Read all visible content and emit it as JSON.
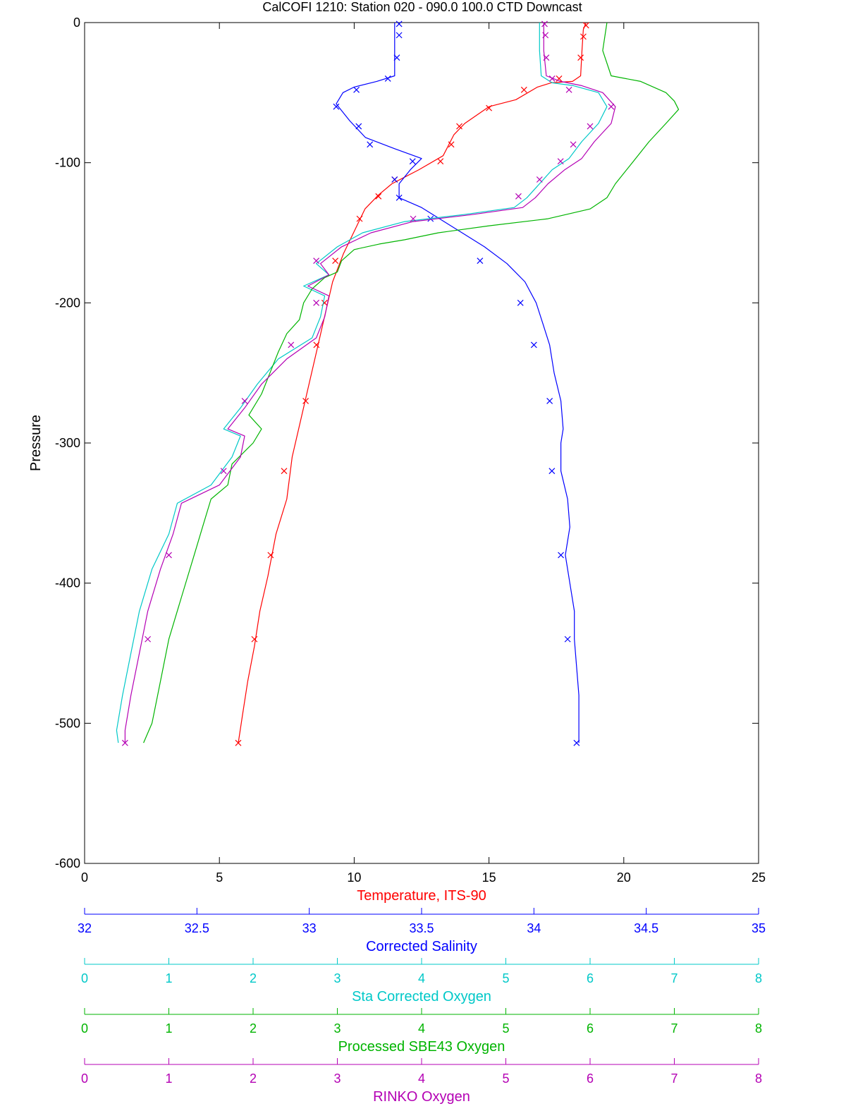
{
  "chart_data": {
    "type": "line",
    "title": "CalCOFI 1210: Station 020 - 090.0 100.0 CTD Downcast",
    "ylabel": "Pressure",
    "ylim": [
      -600,
      0
    ],
    "yticks": [
      "0",
      "-100",
      "-200",
      "-300",
      "-400",
      "-500",
      "-600"
    ],
    "grid": false,
    "axes": [
      {
        "key": "temp",
        "label": "Temperature, ITS-90",
        "color": "#ff0000",
        "range": [
          0,
          25
        ],
        "ticks": [
          "0",
          "5",
          "10",
          "15",
          "20",
          "25"
        ]
      },
      {
        "key": "sal",
        "label": "Corrected Salinity",
        "color": "#0000ff",
        "range": [
          32,
          35
        ],
        "ticks": [
          "32",
          "32.5",
          "33",
          "33.5",
          "34",
          "34.5",
          "35"
        ]
      },
      {
        "key": "staox",
        "label": "Sta Corrected Oxygen",
        "color": "#00c8c8",
        "range": [
          0,
          8
        ],
        "ticks": [
          "0",
          "1",
          "2",
          "3",
          "4",
          "5",
          "6",
          "7",
          "8"
        ]
      },
      {
        "key": "sbe43",
        "label": "Processed SBE43 Oxygen",
        "color": "#00b400",
        "range": [
          0,
          8
        ],
        "ticks": [
          "0",
          "1",
          "2",
          "3",
          "4",
          "5",
          "6",
          "7",
          "8"
        ]
      },
      {
        "key": "rinko",
        "label": "RINKO Oxygen",
        "color": "#b400b4",
        "range": [
          0,
          8
        ],
        "ticks": [
          "0",
          "1",
          "2",
          "3",
          "4",
          "5",
          "6",
          "7",
          "8"
        ]
      }
    ],
    "series": [
      {
        "key": "temp",
        "color": "#ff0000",
        "line": [
          [
            18.6,
            0
          ],
          [
            18.5,
            -5
          ],
          [
            18.45,
            -20
          ],
          [
            18.4,
            -38
          ],
          [
            18.1,
            -42
          ],
          [
            17.3,
            -43
          ],
          [
            16.8,
            -46
          ],
          [
            16.0,
            -55
          ],
          [
            15.0,
            -60
          ],
          [
            14.1,
            -72
          ],
          [
            13.7,
            -80
          ],
          [
            13.3,
            -95
          ],
          [
            12.4,
            -105
          ],
          [
            11.4,
            -115
          ],
          [
            10.9,
            -123
          ],
          [
            10.4,
            -133
          ],
          [
            10.1,
            -145
          ],
          [
            9.6,
            -165
          ],
          [
            9.2,
            -185
          ],
          [
            8.9,
            -210
          ],
          [
            8.6,
            -235
          ],
          [
            8.3,
            -260
          ],
          [
            8.0,
            -285
          ],
          [
            7.7,
            -310
          ],
          [
            7.5,
            -340
          ],
          [
            7.1,
            -365
          ],
          [
            6.8,
            -395
          ],
          [
            6.5,
            -420
          ],
          [
            6.3,
            -445
          ],
          [
            6.05,
            -470
          ],
          [
            5.85,
            -495
          ],
          [
            5.7,
            -514
          ]
        ],
        "markers": [
          [
            18.6,
            -2
          ],
          [
            18.5,
            -10
          ],
          [
            18.4,
            -25
          ],
          [
            17.6,
            -40
          ],
          [
            16.3,
            -48
          ],
          [
            15.0,
            -61
          ],
          [
            13.9,
            -74
          ],
          [
            13.6,
            -87
          ],
          [
            13.2,
            -99
          ],
          [
            11.5,
            -112
          ],
          [
            10.9,
            -124
          ],
          [
            10.2,
            -140
          ],
          [
            9.3,
            -170
          ],
          [
            8.9,
            -200
          ],
          [
            8.6,
            -230
          ],
          [
            8.2,
            -270
          ],
          [
            7.4,
            -320
          ],
          [
            6.9,
            -380
          ],
          [
            6.3,
            -440
          ],
          [
            5.7,
            -514
          ]
        ]
      },
      {
        "key": "sal",
        "color": "#0000ff",
        "line": [
          [
            33.38,
            0
          ],
          [
            33.38,
            -20
          ],
          [
            33.38,
            -38
          ],
          [
            33.3,
            -42
          ],
          [
            33.2,
            -46
          ],
          [
            33.15,
            -50
          ],
          [
            33.12,
            -58
          ],
          [
            33.18,
            -70
          ],
          [
            33.25,
            -82
          ],
          [
            33.38,
            -90
          ],
          [
            33.5,
            -97
          ],
          [
            33.45,
            -105
          ],
          [
            33.4,
            -115
          ],
          [
            33.4,
            -125
          ],
          [
            33.5,
            -132
          ],
          [
            33.58,
            -140
          ],
          [
            33.68,
            -150
          ],
          [
            33.78,
            -160
          ],
          [
            33.88,
            -172
          ],
          [
            33.96,
            -185
          ],
          [
            34.01,
            -200
          ],
          [
            34.04,
            -215
          ],
          [
            34.07,
            -230
          ],
          [
            34.09,
            -250
          ],
          [
            34.12,
            -270
          ],
          [
            34.13,
            -290
          ],
          [
            34.12,
            -300
          ],
          [
            34.12,
            -320
          ],
          [
            34.15,
            -340
          ],
          [
            34.16,
            -360
          ],
          [
            34.14,
            -380
          ],
          [
            34.16,
            -400
          ],
          [
            34.18,
            -420
          ],
          [
            34.18,
            -440
          ],
          [
            34.19,
            -460
          ],
          [
            34.2,
            -480
          ],
          [
            34.2,
            -500
          ],
          [
            34.2,
            -514
          ]
        ],
        "markers": [
          [
            33.4,
            -1
          ],
          [
            33.4,
            -9
          ],
          [
            33.39,
            -25
          ],
          [
            33.35,
            -40
          ],
          [
            33.21,
            -48
          ],
          [
            33.12,
            -60
          ],
          [
            33.22,
            -74
          ],
          [
            33.27,
            -87
          ],
          [
            33.46,
            -99
          ],
          [
            33.38,
            -112
          ],
          [
            33.4,
            -125
          ],
          [
            33.54,
            -140
          ],
          [
            33.76,
            -170
          ],
          [
            33.94,
            -200
          ],
          [
            34.0,
            -230
          ],
          [
            34.07,
            -270
          ],
          [
            34.08,
            -320
          ],
          [
            34.12,
            -380
          ],
          [
            34.15,
            -440
          ],
          [
            34.19,
            -514
          ]
        ]
      },
      {
        "key": "staox",
        "color": "#00c8c8",
        "line": [
          [
            5.4,
            0
          ],
          [
            5.4,
            -20
          ],
          [
            5.42,
            -38
          ],
          [
            5.55,
            -43
          ],
          [
            5.8,
            -45
          ],
          [
            6.1,
            -50
          ],
          [
            6.2,
            -60
          ],
          [
            6.1,
            -72
          ],
          [
            5.9,
            -85
          ],
          [
            5.75,
            -97
          ],
          [
            5.55,
            -105
          ],
          [
            5.4,
            -115
          ],
          [
            5.25,
            -125
          ],
          [
            5.1,
            -132
          ],
          [
            4.5,
            -137
          ],
          [
            3.8,
            -142
          ],
          [
            3.3,
            -150
          ],
          [
            3.0,
            -160
          ],
          [
            2.75,
            -172
          ],
          [
            2.9,
            -180
          ],
          [
            2.6,
            -188
          ],
          [
            2.85,
            -195
          ],
          [
            2.8,
            -210
          ],
          [
            2.7,
            -225
          ],
          [
            2.3,
            -240
          ],
          [
            2.05,
            -258
          ],
          [
            1.85,
            -275
          ],
          [
            1.65,
            -290
          ],
          [
            1.85,
            -295
          ],
          [
            1.75,
            -310
          ],
          [
            1.5,
            -330
          ],
          [
            1.1,
            -343
          ],
          [
            1.0,
            -365
          ],
          [
            0.8,
            -390
          ],
          [
            0.65,
            -420
          ],
          [
            0.55,
            -450
          ],
          [
            0.45,
            -480
          ],
          [
            0.38,
            -505
          ],
          [
            0.4,
            -514
          ]
        ],
        "markers": []
      },
      {
        "key": "sbe43",
        "color": "#00b400",
        "line": [
          [
            6.2,
            0
          ],
          [
            6.15,
            -20
          ],
          [
            6.25,
            -38
          ],
          [
            6.6,
            -42
          ],
          [
            6.9,
            -50
          ],
          [
            7.0,
            -56
          ],
          [
            7.05,
            -62
          ],
          [
            6.9,
            -72
          ],
          [
            6.7,
            -85
          ],
          [
            6.5,
            -100
          ],
          [
            6.3,
            -115
          ],
          [
            6.2,
            -125
          ],
          [
            6.0,
            -133
          ],
          [
            5.5,
            -140
          ],
          [
            4.8,
            -145
          ],
          [
            4.2,
            -150
          ],
          [
            3.8,
            -155
          ],
          [
            3.5,
            -158
          ],
          [
            3.2,
            -162
          ],
          [
            3.05,
            -170
          ],
          [
            3.0,
            -178
          ],
          [
            2.85,
            -182
          ],
          [
            2.7,
            -190
          ],
          [
            2.6,
            -200
          ],
          [
            2.55,
            -212
          ],
          [
            2.4,
            -222
          ],
          [
            2.3,
            -235
          ],
          [
            2.2,
            -250
          ],
          [
            2.1,
            -265
          ],
          [
            1.95,
            -280
          ],
          [
            2.1,
            -290
          ],
          [
            2.0,
            -300
          ],
          [
            1.75,
            -315
          ],
          [
            1.7,
            -330
          ],
          [
            1.5,
            -340
          ],
          [
            1.4,
            -360
          ],
          [
            1.3,
            -380
          ],
          [
            1.15,
            -410
          ],
          [
            1.0,
            -440
          ],
          [
            0.9,
            -470
          ],
          [
            0.8,
            -500
          ],
          [
            0.7,
            -514
          ]
        ],
        "markers": []
      },
      {
        "key": "rinko",
        "color": "#b400b4",
        "line": [
          [
            5.45,
            0
          ],
          [
            5.45,
            -20
          ],
          [
            5.48,
            -38
          ],
          [
            5.65,
            -42
          ],
          [
            5.9,
            -45
          ],
          [
            6.15,
            -50
          ],
          [
            6.3,
            -60
          ],
          [
            6.25,
            -72
          ],
          [
            6.05,
            -85
          ],
          [
            5.9,
            -97
          ],
          [
            5.7,
            -105
          ],
          [
            5.5,
            -115
          ],
          [
            5.35,
            -125
          ],
          [
            5.2,
            -132
          ],
          [
            4.6,
            -137
          ],
          [
            3.9,
            -142
          ],
          [
            3.4,
            -150
          ],
          [
            3.05,
            -160
          ],
          [
            2.8,
            -172
          ],
          [
            2.9,
            -180
          ],
          [
            2.65,
            -188
          ],
          [
            2.9,
            -195
          ],
          [
            2.85,
            -210
          ],
          [
            2.75,
            -225
          ],
          [
            2.4,
            -240
          ],
          [
            2.1,
            -258
          ],
          [
            1.9,
            -275
          ],
          [
            1.7,
            -290
          ],
          [
            1.9,
            -295
          ],
          [
            1.85,
            -310
          ],
          [
            1.6,
            -330
          ],
          [
            1.15,
            -343
          ],
          [
            1.05,
            -365
          ],
          [
            0.9,
            -390
          ],
          [
            0.75,
            -420
          ],
          [
            0.65,
            -450
          ],
          [
            0.55,
            -480
          ],
          [
            0.48,
            -505
          ],
          [
            0.48,
            -514
          ]
        ],
        "markers": [
          [
            5.46,
            -1
          ],
          [
            5.47,
            -9
          ],
          [
            5.48,
            -25
          ],
          [
            5.55,
            -40
          ],
          [
            5.75,
            -48
          ],
          [
            6.25,
            -60
          ],
          [
            6.0,
            -74
          ],
          [
            5.8,
            -87
          ],
          [
            5.65,
            -99
          ],
          [
            5.4,
            -112
          ],
          [
            5.15,
            -124
          ],
          [
            3.9,
            -140
          ],
          [
            2.75,
            -170
          ],
          [
            2.75,
            -200
          ],
          [
            2.45,
            -230
          ],
          [
            1.9,
            -270
          ],
          [
            1.65,
            -320
          ],
          [
            1.0,
            -380
          ],
          [
            0.75,
            -440
          ],
          [
            0.48,
            -514
          ]
        ]
      }
    ]
  }
}
